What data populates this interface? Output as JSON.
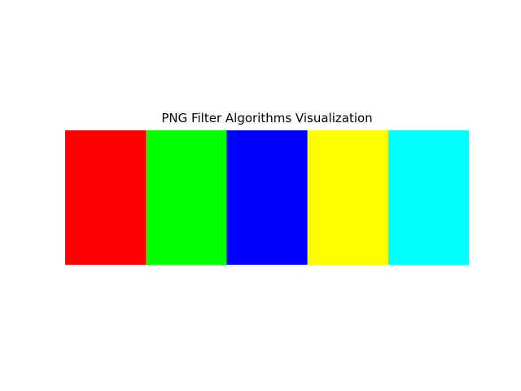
{
  "chart_data": {
    "type": "heatmap",
    "title": "PNG Filter Algorithms Visualization",
    "rows": 1,
    "columns": 5,
    "cells": [
      {
        "color": "#ff0000"
      },
      {
        "color": "#00ff00"
      },
      {
        "color": "#0000ff"
      },
      {
        "color": "#ffff00"
      },
      {
        "color": "#00ffff"
      }
    ],
    "axes_visible": false,
    "grid": false,
    "legend": "none"
  }
}
